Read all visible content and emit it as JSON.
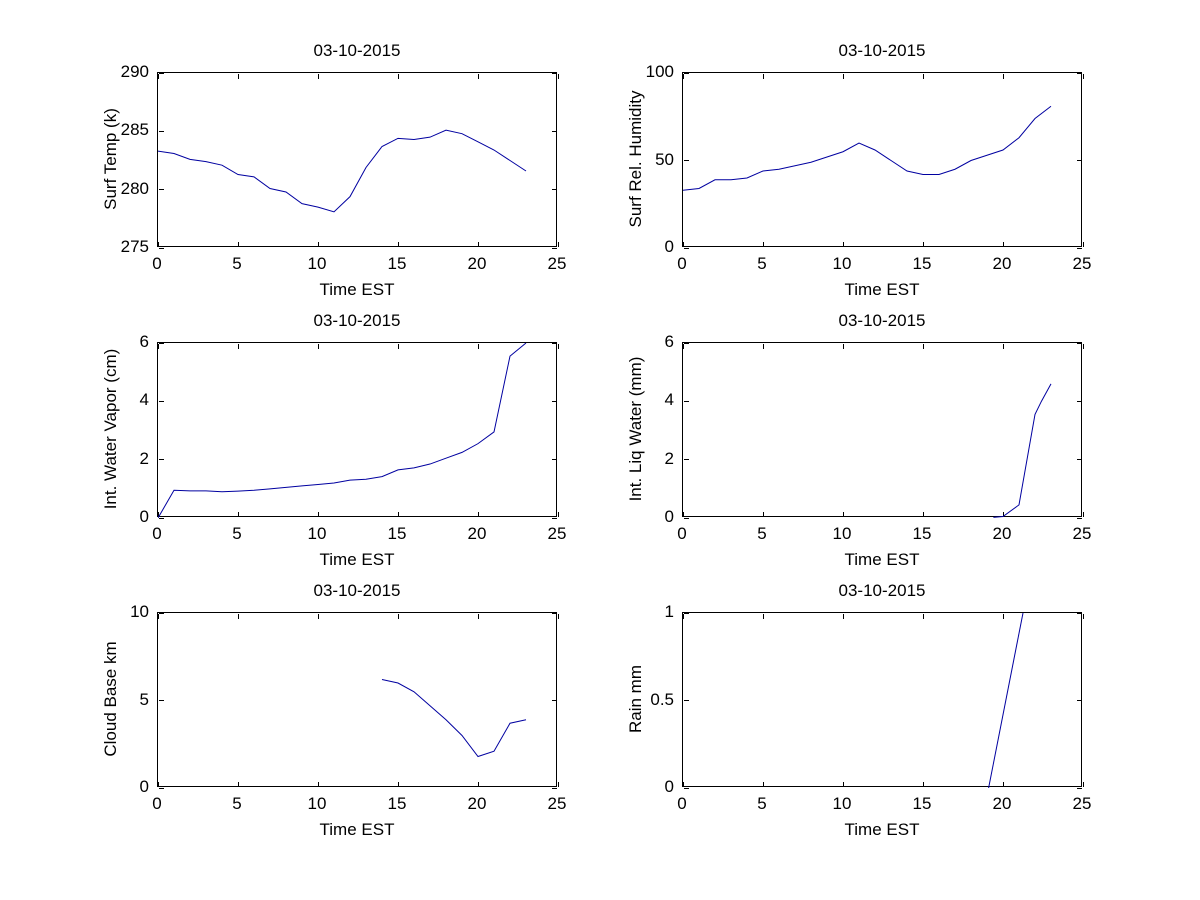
{
  "figure": {
    "background": "#ffffff",
    "line_color": "#0000a0",
    "axis_color": "#000000",
    "text_color": "#000000",
    "grid": "off",
    "legend": "none"
  },
  "chart_data": [
    {
      "type": "line",
      "title": "03-10-2015",
      "xlabel": "Time EST",
      "ylabel": "Surf Temp (k)",
      "xlim": [
        0,
        25
      ],
      "ylim": [
        275,
        290
      ],
      "xticks": [
        0,
        5,
        10,
        15,
        20,
        25
      ],
      "yticks": [
        275,
        280,
        285,
        290
      ],
      "points": [
        [
          0,
          283.3
        ],
        [
          1,
          283.1
        ],
        [
          2,
          282.6
        ],
        [
          3,
          282.4
        ],
        [
          4,
          282.1
        ],
        [
          5,
          281.3
        ],
        [
          6,
          281.1
        ],
        [
          7,
          280.1
        ],
        [
          8,
          279.8
        ],
        [
          9,
          278.8
        ],
        [
          10,
          278.5
        ],
        [
          11,
          278.1
        ],
        [
          12,
          279.4
        ],
        [
          13,
          281.9
        ],
        [
          14,
          283.7
        ],
        [
          15,
          284.4
        ],
        [
          16,
          284.3
        ],
        [
          17,
          284.5
        ],
        [
          18,
          285.1
        ],
        [
          19,
          284.8
        ],
        [
          20,
          284.1
        ],
        [
          21,
          283.4
        ],
        [
          22,
          282.5
        ],
        [
          23,
          281.6
        ]
      ]
    },
    {
      "type": "line",
      "title": "03-10-2015",
      "xlabel": "Time EST",
      "ylabel": "Surf Rel. Humidity",
      "xlim": [
        0,
        25
      ],
      "ylim": [
        0,
        100
      ],
      "xticks": [
        0,
        5,
        10,
        15,
        20,
        25
      ],
      "yticks": [
        0,
        50,
        100
      ],
      "points": [
        [
          0,
          33
        ],
        [
          1,
          34
        ],
        [
          2,
          39
        ],
        [
          3,
          39
        ],
        [
          4,
          40
        ],
        [
          5,
          44
        ],
        [
          6,
          45
        ],
        [
          7,
          47
        ],
        [
          8,
          49
        ],
        [
          9,
          52
        ],
        [
          10,
          55
        ],
        [
          11,
          60
        ],
        [
          12,
          56
        ],
        [
          13,
          50
        ],
        [
          14,
          44
        ],
        [
          15,
          42
        ],
        [
          16,
          42
        ],
        [
          17,
          45
        ],
        [
          18,
          50
        ],
        [
          19,
          53
        ],
        [
          20,
          56
        ],
        [
          21,
          63
        ],
        [
          22,
          74
        ],
        [
          23,
          81
        ]
      ]
    },
    {
      "type": "line",
      "title": "03-10-2015",
      "xlabel": "Time EST",
      "ylabel": "Int. Water Vapor (cm)",
      "xlim": [
        0,
        25
      ],
      "ylim": [
        0,
        6
      ],
      "xticks": [
        0,
        5,
        10,
        15,
        20,
        25
      ],
      "yticks": [
        0,
        2,
        4,
        6
      ],
      "points": [
        [
          0,
          0
        ],
        [
          1,
          0.95
        ],
        [
          2,
          0.93
        ],
        [
          3,
          0.93
        ],
        [
          4,
          0.9
        ],
        [
          5,
          0.92
        ],
        [
          6,
          0.95
        ],
        [
          7,
          1.0
        ],
        [
          8,
          1.05
        ],
        [
          9,
          1.1
        ],
        [
          10,
          1.15
        ],
        [
          11,
          1.2
        ],
        [
          12,
          1.3
        ],
        [
          13,
          1.33
        ],
        [
          14,
          1.42
        ],
        [
          15,
          1.65
        ],
        [
          16,
          1.72
        ],
        [
          17,
          1.85
        ],
        [
          18,
          2.05
        ],
        [
          19,
          2.25
        ],
        [
          20,
          2.55
        ],
        [
          21,
          2.95
        ],
        [
          22,
          5.55
        ],
        [
          23,
          6.0
        ]
      ]
    },
    {
      "type": "line",
      "title": "03-10-2015",
      "xlabel": "Time EST",
      "ylabel": "Int. Liq Water (mm)",
      "xlim": [
        0,
        25
      ],
      "ylim": [
        0,
        6
      ],
      "xticks": [
        0,
        5,
        10,
        15,
        20,
        25
      ],
      "yticks": [
        0,
        2,
        4,
        6
      ],
      "points": [
        [
          19.4,
          0.02
        ],
        [
          20,
          0.05
        ],
        [
          21,
          0.45
        ],
        [
          22,
          3.55
        ],
        [
          22.4,
          4.0
        ],
        [
          23,
          4.6
        ]
      ]
    },
    {
      "type": "line",
      "title": "03-10-2015",
      "xlabel": "Time EST",
      "ylabel": "Cloud Base km",
      "xlim": [
        0,
        25
      ],
      "ylim": [
        0,
        10
      ],
      "xticks": [
        0,
        5,
        10,
        15,
        20,
        25
      ],
      "yticks": [
        0,
        5,
        10
      ],
      "points": [
        [
          14,
          6.2
        ],
        [
          15,
          6.0
        ],
        [
          16,
          5.5
        ],
        [
          17,
          4.7
        ],
        [
          18,
          3.9
        ],
        [
          19,
          3.0
        ],
        [
          20,
          1.8
        ],
        [
          21,
          2.1
        ],
        [
          22,
          3.7
        ],
        [
          23,
          3.9
        ]
      ]
    },
    {
      "type": "line",
      "title": "03-10-2015",
      "xlabel": "Time EST",
      "ylabel": "Rain mm",
      "xlim": [
        0,
        25
      ],
      "ylim": [
        0,
        1
      ],
      "xticks": [
        0,
        5,
        10,
        15,
        20,
        25
      ],
      "yticks": [
        0,
        0.5,
        1
      ],
      "points": [
        [
          19.1,
          0
        ],
        [
          21.25,
          1
        ]
      ]
    }
  ]
}
